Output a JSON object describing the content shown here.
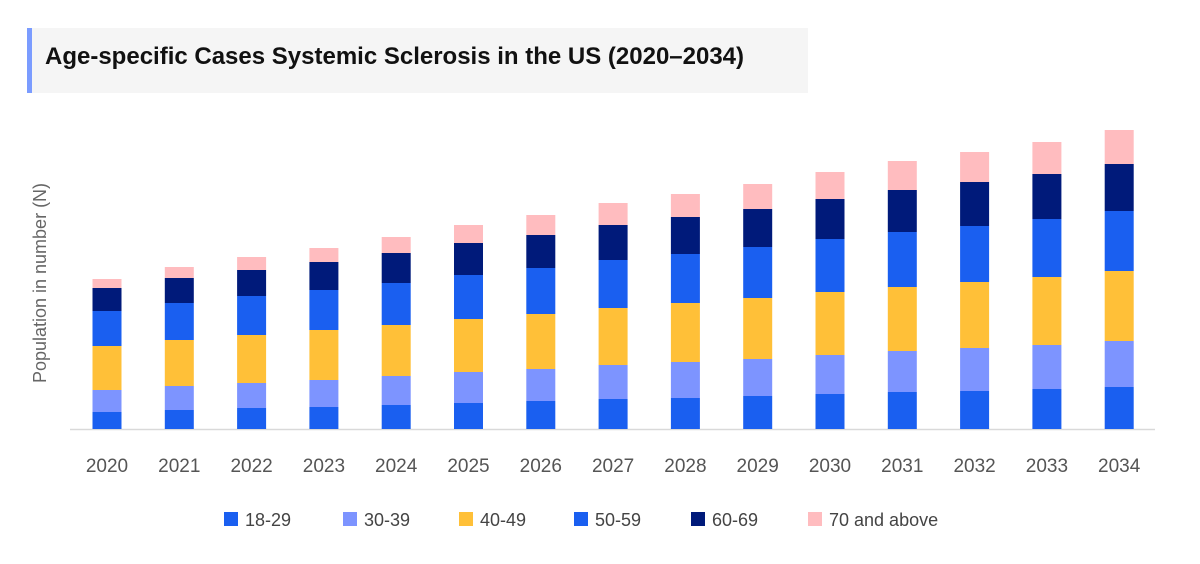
{
  "chart_data": {
    "type": "bar",
    "stacked": true,
    "title": "Age-specific Cases Systemic Sclerosis in the US (2020–2034)",
    "xlabel": "",
    "ylabel": "Population in number (N)",
    "grid": false,
    "legend_position": "bottom",
    "categories": [
      "2020",
      "2021",
      "2022",
      "2023",
      "2024",
      "2025",
      "2026",
      "2027",
      "2028",
      "2029",
      "2030",
      "2031",
      "2032",
      "2033",
      "2034"
    ],
    "series": [
      {
        "name": "18-29",
        "color": "#1a5ff0",
        "values": [
          17,
          19,
          21,
          22,
          24,
          26,
          28,
          30,
          31,
          33,
          35,
          37,
          38,
          40,
          42
        ]
      },
      {
        "name": "30-39",
        "color": "#7d94ff",
        "values": [
          22,
          24,
          25,
          27,
          29,
          31,
          32,
          34,
          36,
          37,
          39,
          41,
          43,
          44,
          46
        ]
      },
      {
        "name": "40-49",
        "color": "#ffc038",
        "values": [
          44,
          46,
          48,
          50,
          51,
          53,
          55,
          57,
          59,
          61,
          63,
          64,
          66,
          68,
          70
        ]
      },
      {
        "name": "50-59",
        "color": "#1a5ff0",
        "values": [
          35,
          37,
          39,
          40,
          42,
          44,
          46,
          48,
          49,
          51,
          53,
          55,
          56,
          58,
          60
        ]
      },
      {
        "name": "60-69",
        "color": "#001a7a",
        "values": [
          23,
          25,
          26,
          28,
          30,
          32,
          33,
          35,
          37,
          38,
          40,
          42,
          44,
          45,
          47
        ]
      },
      {
        "name": "70 and above",
        "color": "#ffbcbf",
        "values": [
          9,
          11,
          13,
          14,
          16,
          18,
          20,
          22,
          23,
          25,
          27,
          29,
          30,
          32,
          34
        ]
      }
    ]
  }
}
